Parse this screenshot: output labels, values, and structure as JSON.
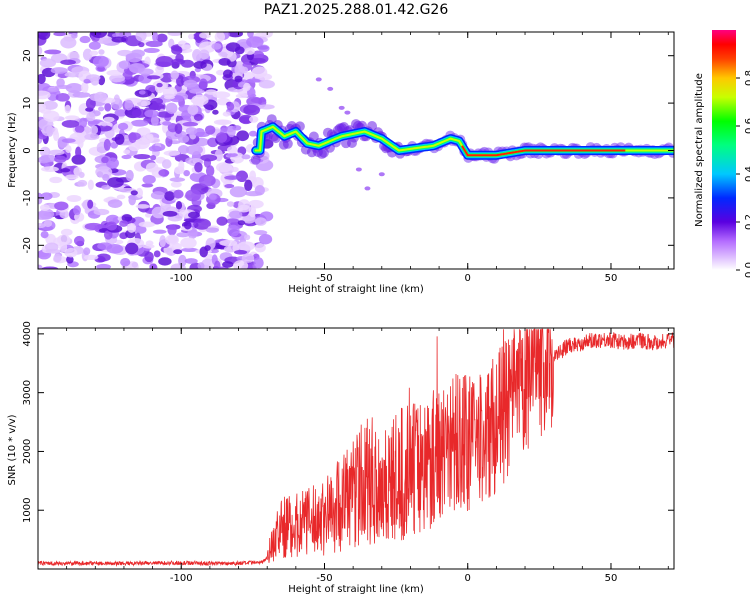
{
  "chart_data": [
    {
      "type": "heatmap",
      "title": "PAZ1.2025.288.01.42.G26",
      "xlabel": "Height of straight line (km)",
      "ylabel": "Frequency (Hz)",
      "xlim": [
        -150,
        72
      ],
      "ylim": [
        -25,
        25
      ],
      "xticks": [
        -100,
        -50,
        0,
        50
      ],
      "xtick_labels": [
        "-100",
        "-50",
        "0",
        "50"
      ],
      "yticks": [
        20,
        10,
        0,
        -10,
        -20
      ],
      "ytick_labels": [
        "20",
        "10",
        "0",
        "-10",
        "-20"
      ],
      "colorbar": {
        "label": "Normalized spectral amplitude",
        "range": [
          0,
          1
        ],
        "ticks": [
          0.0,
          0.2,
          0.4,
          0.6,
          0.8
        ],
        "tick_labels": [
          "0.0",
          "0.2",
          "0.4",
          "0.6",
          "0.8"
        ],
        "colormap": "rainbow (white→purple→blue→cyan→green→yellow→red→magenta)"
      },
      "features": {
        "noise_region_x": [
          -150,
          -70
        ],
        "signal_ridge": [
          [
            -72,
            4
          ],
          [
            -68,
            5
          ],
          [
            -64,
            3
          ],
          [
            -60,
            4
          ],
          [
            -56,
            1.5
          ],
          [
            -52,
            1
          ],
          [
            -48,
            2
          ],
          [
            -44,
            3
          ],
          [
            -40,
            3.5
          ],
          [
            -36,
            4
          ],
          [
            -30,
            2.5
          ],
          [
            -24,
            0
          ],
          [
            -18,
            0.5
          ],
          [
            -12,
            1
          ],
          [
            -6,
            2.5
          ],
          [
            -3,
            2
          ],
          [
            0,
            -1
          ],
          [
            5,
            -1
          ],
          [
            10,
            -1
          ],
          [
            15,
            -0.5
          ],
          [
            20,
            0
          ],
          [
            30,
            0
          ],
          [
            50,
            0
          ],
          [
            72,
            0
          ]
        ]
      }
    },
    {
      "type": "line",
      "xlabel": "Height of straight line (km)",
      "ylabel": "SNR (10 * v/v)",
      "xlim": [
        -150,
        72
      ],
      "ylim": [
        0,
        4100
      ],
      "xticks": [
        -100,
        -50,
        0,
        50
      ],
      "xtick_labels": [
        "-100",
        "-50",
        "0",
        "50"
      ],
      "yticks": [
        1000,
        2000,
        3000,
        4000
      ],
      "ytick_labels": [
        "1000",
        "2000",
        "3000",
        "4000"
      ],
      "color": "#e8282a",
      "series": [
        {
          "name": "SNR",
          "x": [
            -150,
            -140,
            -130,
            -120,
            -110,
            -100,
            -90,
            -80,
            -72,
            -70,
            -68,
            -65,
            -60,
            -55,
            -50,
            -45,
            -40,
            -35,
            -30,
            -25,
            -20,
            -15,
            -10,
            -5,
            0,
            5,
            10,
            15,
            20,
            25,
            30,
            35,
            40,
            45,
            50,
            55,
            60,
            65,
            72
          ],
          "values": [
            100,
            95,
            100,
            90,
            100,
            105,
            95,
            100,
            110,
            200,
            450,
            700,
            750,
            800,
            900,
            1100,
            1300,
            1500,
            1450,
            1500,
            1700,
            1800,
            2000,
            2150,
            2100,
            2200,
            2500,
            2800,
            3100,
            3400,
            3600,
            3800,
            3850,
            3900,
            3900,
            3850,
            3900,
            3850,
            3900
          ]
        }
      ]
    }
  ]
}
